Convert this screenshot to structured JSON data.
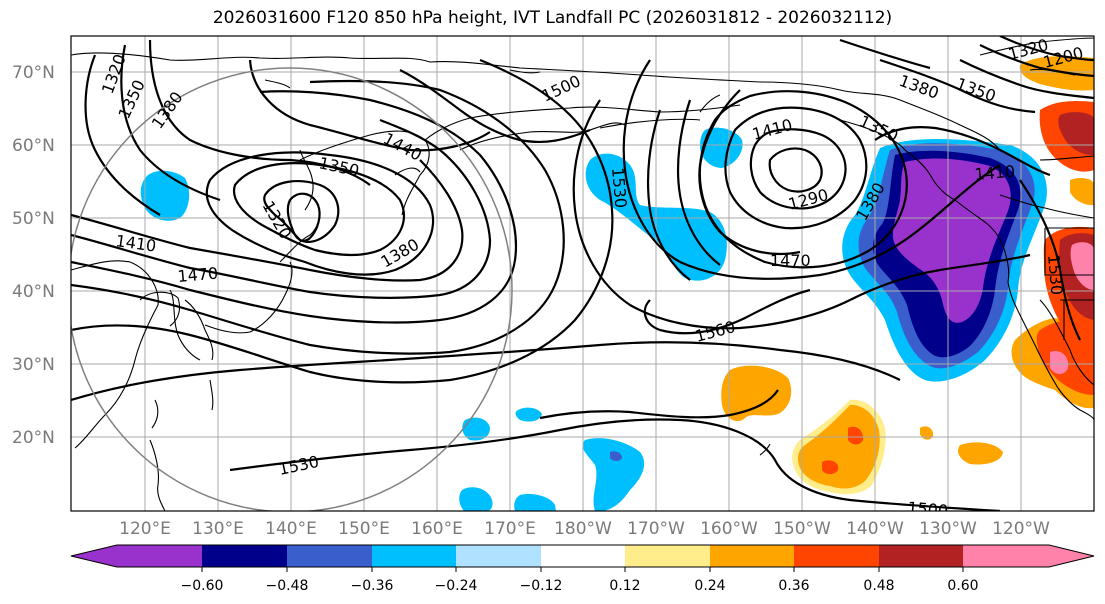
{
  "title": "2026031600 F120 850 hPa height, IVT Landfall PC (2026031812 - 2026032112)",
  "lat_labels": [
    "70°N",
    "60°N",
    "50°N",
    "40°N",
    "30°N",
    "20°N"
  ],
  "lon_labels": [
    "120°E",
    "130°E",
    "140°E",
    "150°E",
    "160°E",
    "170°E",
    "180°W",
    "170°W",
    "160°W",
    "150°W",
    "140°W",
    "130°W",
    "120°W"
  ],
  "contour_labels": [
    "1320",
    "1350",
    "1380",
    "1440",
    "1500",
    "1410",
    "1350",
    "1320",
    "1290",
    "1350",
    "1380",
    "1410",
    "1410",
    "1470",
    "1470",
    "1380",
    "1530",
    "1560",
    "1530",
    "1500",
    "1530",
    "1320",
    "1200",
    "1350",
    "1380"
  ],
  "colorbar": {
    "tick_labels": [
      "−0.60",
      "−0.48",
      "−0.36",
      "−0.24",
      "−0.12",
      "0.12",
      "0.24",
      "0.36",
      "0.48",
      "0.60"
    ],
    "colors": [
      "#9932cc",
      "#00008b",
      "#3a5fcd",
      "#00bfff",
      "#b0e2ff",
      "#ffffff",
      "#ffec8b",
      "#ffa500",
      "#ff4500",
      "#b22222",
      "#ff82ab"
    ]
  }
}
